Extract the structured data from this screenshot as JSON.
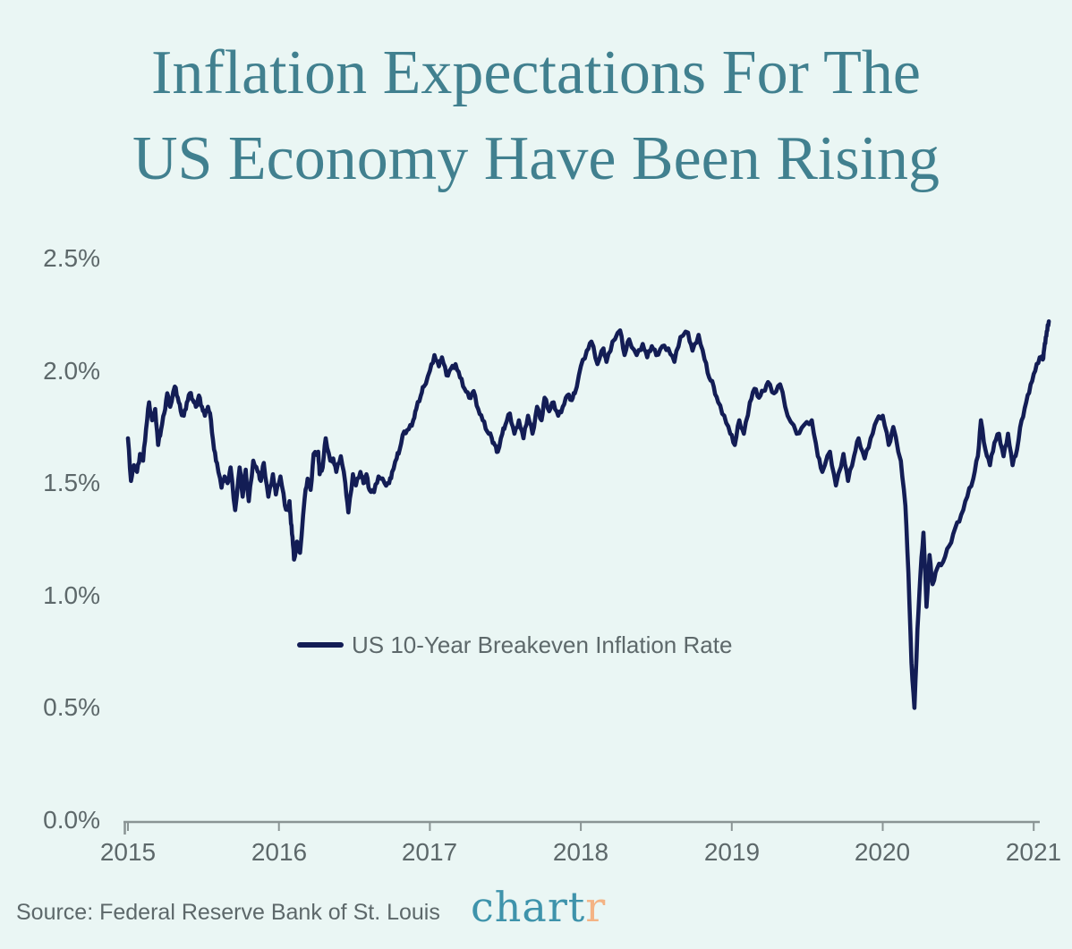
{
  "title": {
    "line1": "Inflation Expectations For The",
    "line2": "US Economy Have Been Rising"
  },
  "legend": {
    "label": "US 10-Year Breakeven Inflation Rate"
  },
  "source": {
    "text": "Source: Federal Reserve Bank of St. Louis"
  },
  "logo": {
    "part1": "chart",
    "part2": "r"
  },
  "colors": {
    "background": "#eaf6f4",
    "title": "#41808f",
    "text_gray": "#5d686a",
    "axis": "#8a9494",
    "line": "#131d55",
    "logo_teal": "#3e93ab",
    "logo_orange": "#f4b384"
  },
  "chart_data": {
    "type": "line",
    "title": "Inflation Expectations For The US Economy Have Been Rising",
    "xlabel": "",
    "ylabel": "",
    "y_unit": "percent",
    "grid": false,
    "legend_position": "inside-left, mid-height",
    "x_tick_labels": [
      "2015",
      "2016",
      "2017",
      "2018",
      "2019",
      "2020",
      "2021"
    ],
    "x_tick_years": [
      2015,
      2016,
      2017,
      2018,
      2019,
      2020,
      2021
    ],
    "y_tick_labels": [
      "2.5%",
      "2.0%",
      "1.5%",
      "1.0%",
      "0.5%",
      "0.0%"
    ],
    "y_tick_values": [
      2.5,
      2.0,
      1.5,
      1.0,
      0.5,
      0.0
    ],
    "ylim": [
      0,
      2.5
    ],
    "xlim": [
      2015,
      2021.17
    ],
    "series": [
      {
        "name": "US 10-Year Breakeven Inflation Rate",
        "color": "#131d55",
        "points": [
          [
            2015.0,
            1.7
          ],
          [
            2015.02,
            1.51
          ],
          [
            2015.04,
            1.58
          ],
          [
            2015.06,
            1.55
          ],
          [
            2015.08,
            1.63
          ],
          [
            2015.1,
            1.6
          ],
          [
            2015.12,
            1.74
          ],
          [
            2015.14,
            1.86
          ],
          [
            2015.16,
            1.78
          ],
          [
            2015.18,
            1.83
          ],
          [
            2015.2,
            1.67
          ],
          [
            2015.22,
            1.74
          ],
          [
            2015.24,
            1.81
          ],
          [
            2015.26,
            1.9
          ],
          [
            2015.28,
            1.84
          ],
          [
            2015.31,
            1.93
          ],
          [
            2015.33,
            1.88
          ],
          [
            2015.35,
            1.82
          ],
          [
            2015.37,
            1.8
          ],
          [
            2015.39,
            1.86
          ],
          [
            2015.41,
            1.9
          ],
          [
            2015.43,
            1.87
          ],
          [
            2015.45,
            1.84
          ],
          [
            2015.47,
            1.89
          ],
          [
            2015.49,
            1.84
          ],
          [
            2015.51,
            1.8
          ],
          [
            2015.53,
            1.84
          ],
          [
            2015.55,
            1.78
          ],
          [
            2015.57,
            1.65
          ],
          [
            2015.59,
            1.59
          ],
          [
            2015.62,
            1.48
          ],
          [
            2015.64,
            1.53
          ],
          [
            2015.66,
            1.5
          ],
          [
            2015.68,
            1.57
          ],
          [
            2015.71,
            1.38
          ],
          [
            2015.74,
            1.57
          ],
          [
            2015.76,
            1.44
          ],
          [
            2015.78,
            1.56
          ],
          [
            2015.8,
            1.42
          ],
          [
            2015.83,
            1.6
          ],
          [
            2015.86,
            1.55
          ],
          [
            2015.88,
            1.51
          ],
          [
            2015.9,
            1.59
          ],
          [
            2015.93,
            1.44
          ],
          [
            2015.96,
            1.54
          ],
          [
            2015.98,
            1.45
          ],
          [
            2016.01,
            1.53
          ],
          [
            2016.04,
            1.4
          ],
          [
            2016.06,
            1.38
          ],
          [
            2016.07,
            1.42
          ],
          [
            2016.08,
            1.32
          ],
          [
            2016.09,
            1.26
          ],
          [
            2016.1,
            1.16
          ],
          [
            2016.12,
            1.24
          ],
          [
            2016.14,
            1.19
          ],
          [
            2016.17,
            1.43
          ],
          [
            2016.19,
            1.52
          ],
          [
            2016.21,
            1.47
          ],
          [
            2016.23,
            1.63
          ],
          [
            2016.26,
            1.64
          ],
          [
            2016.27,
            1.54
          ],
          [
            2016.29,
            1.57
          ],
          [
            2016.31,
            1.7
          ],
          [
            2016.34,
            1.6
          ],
          [
            2016.36,
            1.61
          ],
          [
            2016.38,
            1.55
          ],
          [
            2016.41,
            1.62
          ],
          [
            2016.44,
            1.5
          ],
          [
            2016.46,
            1.37
          ],
          [
            2016.49,
            1.54
          ],
          [
            2016.51,
            1.49
          ],
          [
            2016.54,
            1.55
          ],
          [
            2016.56,
            1.5
          ],
          [
            2016.58,
            1.54
          ],
          [
            2016.6,
            1.47
          ],
          [
            2016.63,
            1.46
          ],
          [
            2016.66,
            1.53
          ],
          [
            2016.7,
            1.5
          ],
          [
            2016.73,
            1.5
          ],
          [
            2016.75,
            1.55
          ],
          [
            2016.78,
            1.61
          ],
          [
            2016.8,
            1.65
          ],
          [
            2016.83,
            1.73
          ],
          [
            2016.86,
            1.74
          ],
          [
            2016.89,
            1.78
          ],
          [
            2016.91,
            1.83
          ],
          [
            2016.94,
            1.89
          ],
          [
            2016.96,
            1.93
          ],
          [
            2017.0,
            2.0
          ],
          [
            2017.03,
            2.07
          ],
          [
            2017.06,
            2.02
          ],
          [
            2017.08,
            2.06
          ],
          [
            2017.11,
            1.98
          ],
          [
            2017.14,
            2.01
          ],
          [
            2017.17,
            2.03
          ],
          [
            2017.2,
            1.97
          ],
          [
            2017.23,
            1.92
          ],
          [
            2017.26,
            1.88
          ],
          [
            2017.29,
            1.91
          ],
          [
            2017.32,
            1.83
          ],
          [
            2017.35,
            1.78
          ],
          [
            2017.38,
            1.73
          ],
          [
            2017.41,
            1.7
          ],
          [
            2017.43,
            1.67
          ],
          [
            2017.45,
            1.64
          ],
          [
            2017.48,
            1.72
          ],
          [
            2017.5,
            1.76
          ],
          [
            2017.53,
            1.81
          ],
          [
            2017.56,
            1.72
          ],
          [
            2017.59,
            1.78
          ],
          [
            2017.62,
            1.7
          ],
          [
            2017.65,
            1.8
          ],
          [
            2017.68,
            1.72
          ],
          [
            2017.71,
            1.84
          ],
          [
            2017.74,
            1.78
          ],
          [
            2017.76,
            1.88
          ],
          [
            2017.79,
            1.82
          ],
          [
            2017.82,
            1.86
          ],
          [
            2017.85,
            1.8
          ],
          [
            2017.88,
            1.84
          ],
          [
            2017.91,
            1.89
          ],
          [
            2017.94,
            1.87
          ],
          [
            2017.96,
            1.9
          ],
          [
            2018.0,
            2.02
          ],
          [
            2018.04,
            2.09
          ],
          [
            2018.07,
            2.13
          ],
          [
            2018.11,
            2.03
          ],
          [
            2018.15,
            2.1
          ],
          [
            2018.17,
            2.04
          ],
          [
            2018.21,
            2.13
          ],
          [
            2018.26,
            2.18
          ],
          [
            2018.29,
            2.07
          ],
          [
            2018.32,
            2.14
          ],
          [
            2018.37,
            2.07
          ],
          [
            2018.41,
            2.12
          ],
          [
            2018.44,
            2.06
          ],
          [
            2018.47,
            2.11
          ],
          [
            2018.5,
            2.07
          ],
          [
            2018.54,
            2.11
          ],
          [
            2018.58,
            2.1
          ],
          [
            2018.62,
            2.04
          ],
          [
            2018.66,
            2.15
          ],
          [
            2018.71,
            2.17
          ],
          [
            2018.74,
            2.09
          ],
          [
            2018.78,
            2.16
          ],
          [
            2018.82,
            2.05
          ],
          [
            2018.85,
            1.97
          ],
          [
            2018.88,
            1.93
          ],
          [
            2018.91,
            1.86
          ],
          [
            2018.95,
            1.8
          ],
          [
            2018.99,
            1.72
          ],
          [
            2019.02,
            1.67
          ],
          [
            2019.05,
            1.78
          ],
          [
            2019.08,
            1.72
          ],
          [
            2019.12,
            1.86
          ],
          [
            2019.15,
            1.92
          ],
          [
            2019.18,
            1.88
          ],
          [
            2019.21,
            1.91
          ],
          [
            2019.24,
            1.95
          ],
          [
            2019.28,
            1.9
          ],
          [
            2019.32,
            1.94
          ],
          [
            2019.37,
            1.8
          ],
          [
            2019.43,
            1.72
          ],
          [
            2019.48,
            1.76
          ],
          [
            2019.53,
            1.78
          ],
          [
            2019.57,
            1.62
          ],
          [
            2019.6,
            1.55
          ],
          [
            2019.65,
            1.64
          ],
          [
            2019.69,
            1.49
          ],
          [
            2019.74,
            1.63
          ],
          [
            2019.77,
            1.51
          ],
          [
            2019.81,
            1.62
          ],
          [
            2019.84,
            1.7
          ],
          [
            2019.88,
            1.61
          ],
          [
            2019.92,
            1.7
          ],
          [
            2019.96,
            1.78
          ],
          [
            2020.0,
            1.8
          ],
          [
            2020.04,
            1.67
          ],
          [
            2020.07,
            1.75
          ],
          [
            2020.12,
            1.6
          ],
          [
            2020.15,
            1.4
          ],
          [
            2020.17,
            1.1
          ],
          [
            2020.19,
            0.7
          ],
          [
            2020.21,
            0.5
          ],
          [
            2020.23,
            0.85
          ],
          [
            2020.25,
            1.1
          ],
          [
            2020.27,
            1.28
          ],
          [
            2020.29,
            0.95
          ],
          [
            2020.31,
            1.18
          ],
          [
            2020.33,
            1.05
          ],
          [
            2020.36,
            1.12
          ],
          [
            2020.4,
            1.15
          ],
          [
            2020.44,
            1.22
          ],
          [
            2020.48,
            1.3
          ],
          [
            2020.52,
            1.36
          ],
          [
            2020.56,
            1.44
          ],
          [
            2020.6,
            1.52
          ],
          [
            2020.63,
            1.62
          ],
          [
            2020.65,
            1.78
          ],
          [
            2020.68,
            1.65
          ],
          [
            2020.71,
            1.58
          ],
          [
            2020.74,
            1.68
          ],
          [
            2020.77,
            1.72
          ],
          [
            2020.8,
            1.62
          ],
          [
            2020.83,
            1.72
          ],
          [
            2020.86,
            1.58
          ],
          [
            2020.89,
            1.65
          ],
          [
            2020.92,
            1.78
          ],
          [
            2020.95,
            1.86
          ],
          [
            2020.98,
            1.94
          ],
          [
            2021.01,
            2.0
          ],
          [
            2021.04,
            2.06
          ],
          [
            2021.06,
            2.05
          ],
          [
            2021.07,
            2.1
          ],
          [
            2021.08,
            2.15
          ],
          [
            2021.09,
            2.18
          ],
          [
            2021.1,
            2.22
          ]
        ]
      }
    ]
  }
}
